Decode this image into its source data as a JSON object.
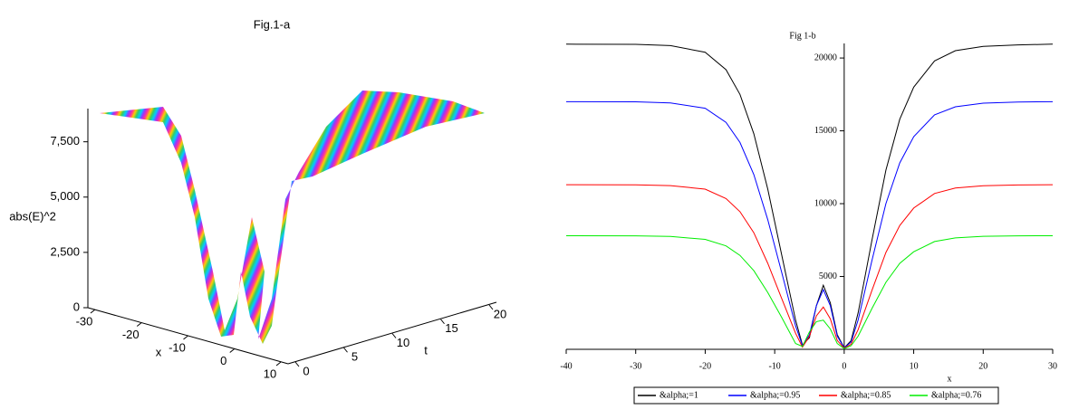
{
  "chart_data": [
    {
      "type": "surface",
      "title": "Fig.1-a",
      "zlabel": "abs(E)^2",
      "xlabel": "x",
      "ylabel": "t",
      "zlim": [
        0,
        9000
      ],
      "zticks": [
        0,
        {
          "value": 2500,
          "label": "2,500"
        },
        {
          "value": 5000,
          "label": "5,000"
        },
        {
          "value": 7500,
          "label": "7,500"
        }
      ],
      "xlim": [
        -30,
        10
      ],
      "xticks": [
        -30,
        -20,
        -10,
        0,
        10
      ],
      "ylim": [
        0,
        20
      ],
      "yticks": [
        0,
        5,
        10,
        15,
        20
      ]
    },
    {
      "type": "line",
      "title": "Fig 1-b",
      "xlabel": "x",
      "x": [
        -40,
        -30,
        -25,
        -20,
        -17,
        -15,
        -13,
        -11,
        -9,
        -7,
        -6,
        -5,
        -4,
        -3,
        -2,
        -1,
        0,
        1,
        2,
        4,
        6,
        8,
        10,
        13,
        16,
        20,
        25,
        30
      ],
      "series": [
        {
          "name": "&alpha;=1",
          "color": "#000000",
          "values": [
            20950,
            20940,
            20850,
            20400,
            19200,
            17500,
            14800,
            11000,
            6500,
            2000,
            300,
            800,
            3000,
            4400,
            3200,
            1000,
            100,
            600,
            2500,
            7500,
            12300,
            15800,
            18000,
            19800,
            20500,
            20800,
            20900,
            20950
          ]
        },
        {
          "name": "&alpha;=0.95",
          "color": "#0000ff",
          "values": [
            17000,
            16990,
            16920,
            16550,
            15580,
            14200,
            12000,
            8900,
            5300,
            1600,
            250,
            1000,
            3000,
            4100,
            3000,
            900,
            100,
            500,
            2000,
            6100,
            10000,
            12800,
            14600,
            16100,
            16650,
            16900,
            16980,
            17000
          ]
        },
        {
          "name": "&alpha;=0.85",
          "color": "#ff0000",
          "values": [
            11300,
            11290,
            11240,
            11000,
            10350,
            9450,
            8000,
            5900,
            3500,
            1100,
            150,
            900,
            2300,
            2900,
            2100,
            600,
            80,
            350,
            1350,
            4050,
            6650,
            8500,
            9700,
            10700,
            11070,
            11230,
            11280,
            11300
          ]
        },
        {
          "name": "&alpha;=0.76",
          "color": "#00ee00",
          "values": [
            7800,
            7790,
            7750,
            7550,
            7100,
            6450,
            5400,
            3900,
            2200,
            400,
            200,
            1200,
            1900,
            2000,
            1400,
            400,
            50,
            250,
            900,
            2800,
            4600,
            5900,
            6700,
            7400,
            7650,
            7760,
            7790,
            7800
          ]
        }
      ],
      "xlim": [
        -40,
        30
      ],
      "xticks": [
        -40,
        -30,
        -20,
        -10,
        0,
        10,
        20,
        30
      ],
      "ylim": [
        0,
        21000
      ],
      "yticks": [
        5000,
        10000,
        15000,
        20000
      ]
    }
  ]
}
